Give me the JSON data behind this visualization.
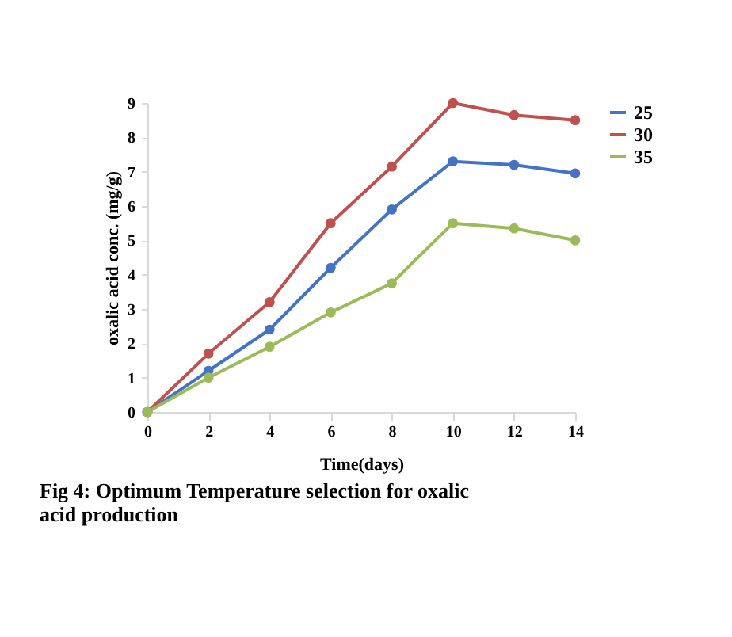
{
  "chart_data": {
    "type": "line",
    "title": "Fig 4: Optimum Temperature selection for oxalic acid production",
    "xlabel": "Time(days)",
    "ylabel": "oxalic acid conc. (mg/g)",
    "x": [
      0,
      2,
      4,
      6,
      8,
      10,
      12,
      14
    ],
    "series": [
      {
        "name": "25",
        "color": "#4472c4",
        "values": [
          0,
          1.2,
          2.4,
          4.2,
          5.9,
          7.3,
          7.2,
          6.95
        ]
      },
      {
        "name": "30",
        "color": "#c0504d",
        "values": [
          0,
          1.7,
          3.2,
          5.5,
          7.15,
          9.0,
          8.65,
          8.5
        ]
      },
      {
        "name": "35",
        "color": "#9bbb59",
        "values": [
          0,
          1.0,
          1.9,
          2.9,
          3.75,
          5.5,
          5.35,
          5.0
        ]
      }
    ],
    "xlim": [
      0,
      14
    ],
    "xticks": [
      0,
      2,
      4,
      6,
      8,
      10,
      12,
      14
    ],
    "ylim": [
      0,
      9
    ],
    "yticks": [
      0,
      1,
      2,
      3,
      4,
      5,
      6,
      7,
      8,
      9
    ],
    "grid": false,
    "legend": "top right",
    "marker": "circle",
    "line_style": "solid"
  }
}
